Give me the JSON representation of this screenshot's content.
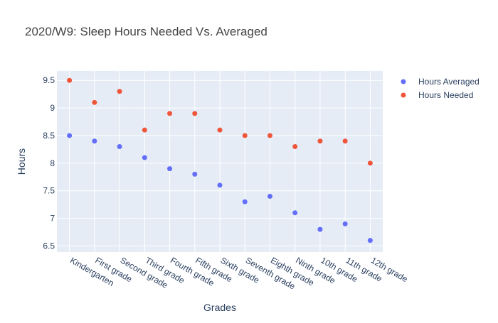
{
  "chart_data": {
    "type": "scatter",
    "title": "2020/W9: Sleep Hours Needed Vs. Averaged",
    "xlabel": "Grades",
    "ylabel": "Hours",
    "categories": [
      "Kindergarten",
      "First grade",
      "Second grade",
      "Third grade",
      "Fourth grade",
      "Fifth grade",
      "Sixth grade",
      "Seventh grade",
      "Eighth grade",
      "Ninth grade",
      "10th grade",
      "11th grade",
      "12th grade"
    ],
    "series": [
      {
        "name": "Hours Averaged",
        "color": "#636efa",
        "values": [
          8.5,
          8.4,
          8.3,
          8.1,
          7.9,
          7.8,
          7.6,
          7.3,
          7.4,
          7.1,
          6.8,
          6.9,
          6.6
        ]
      },
      {
        "name": "Hours Needed",
        "color": "#ef553b",
        "values": [
          9.5,
          9.1,
          9.3,
          8.6,
          8.9,
          8.9,
          8.6,
          8.5,
          8.5,
          8.3,
          8.4,
          8.4,
          8.0
        ]
      }
    ],
    "ylim": [
      6.39,
      9.67
    ],
    "yticks": [
      "6.5",
      "7",
      "7.5",
      "8",
      "8.5",
      "9",
      "9.5"
    ],
    "grid": true,
    "legend": "top-right",
    "plot_background": "#e5ecf6"
  }
}
